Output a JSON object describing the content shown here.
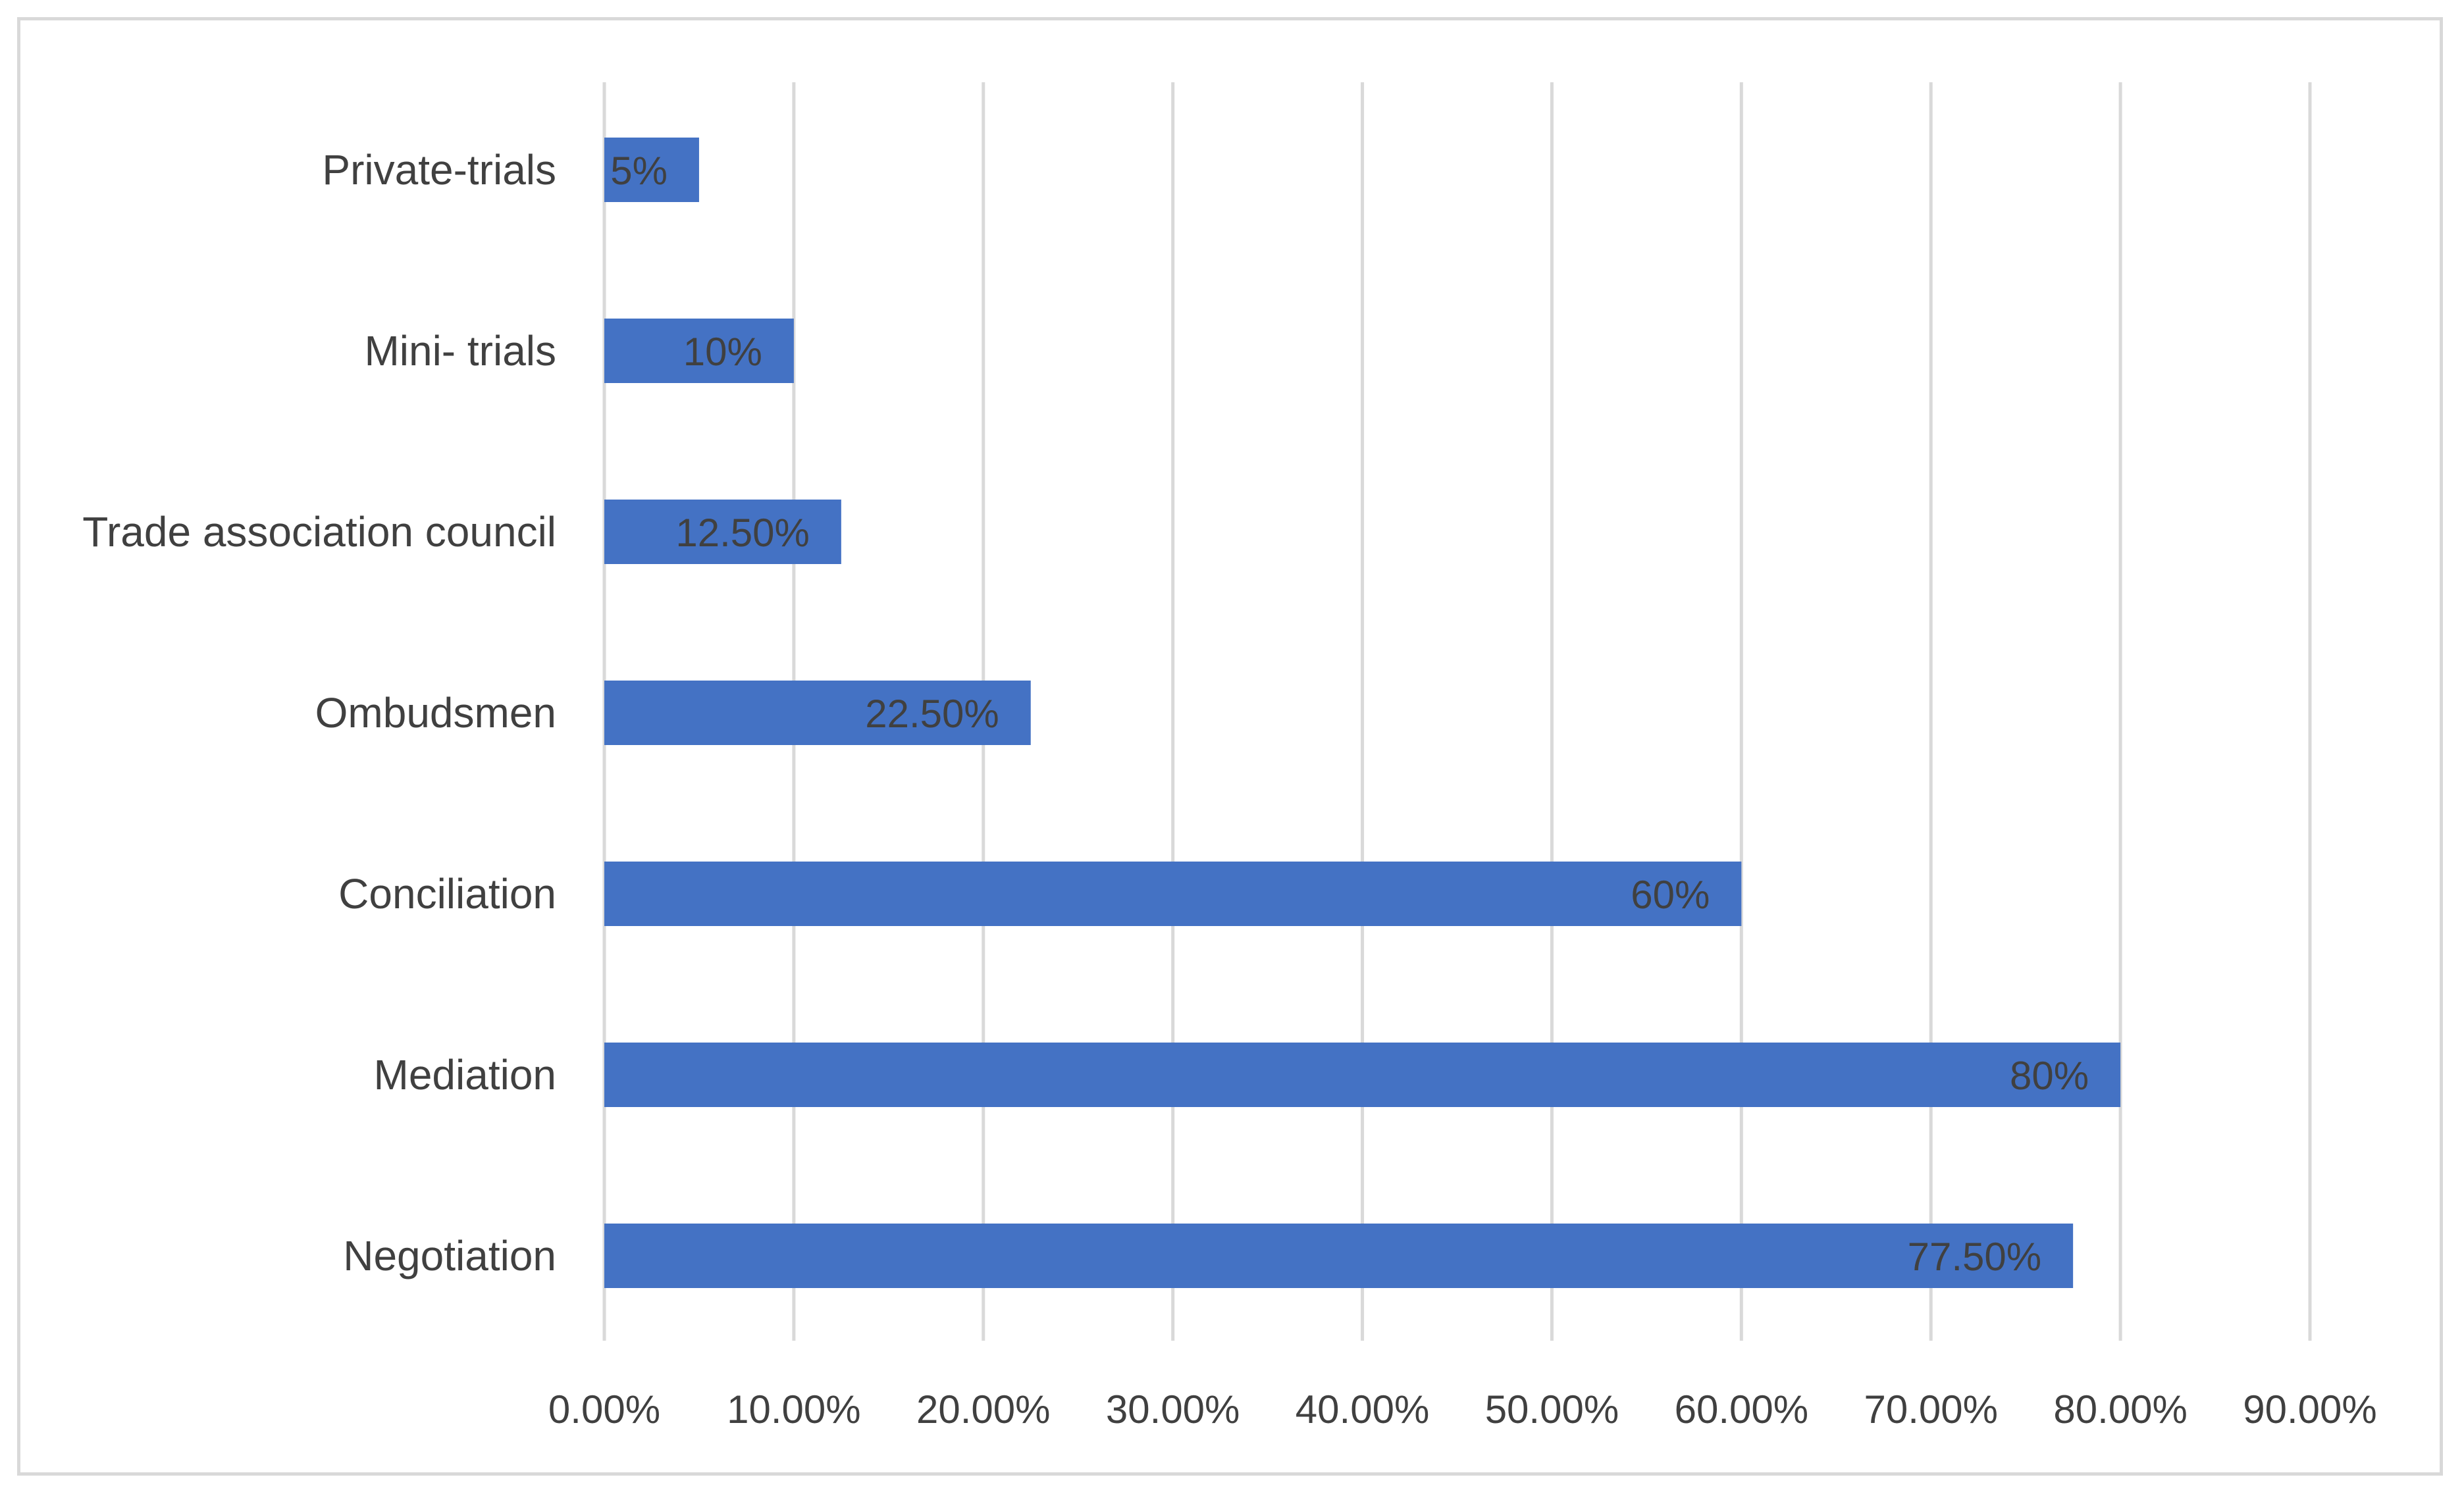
{
  "chart_data": {
    "type": "bar",
    "orientation": "horizontal",
    "title": "",
    "xlabel": "",
    "ylabel": "",
    "categories": [
      "Private-trials",
      "Mini- trials",
      "Trade association council",
      "Ombudsmen",
      "Conciliation",
      "Mediation",
      "Negotiation"
    ],
    "values": [
      5,
      10,
      12.5,
      22.5,
      60,
      80,
      77.5
    ],
    "data_labels": [
      "5%",
      "10%",
      "12.50%",
      "22.50%",
      "60%",
      "80%",
      "77.50%"
    ],
    "xlim": [
      0,
      90
    ],
    "x_ticks": [
      0,
      10,
      20,
      30,
      40,
      50,
      60,
      70,
      80,
      90
    ],
    "x_tick_labels": [
      "0.00%",
      "10.00%",
      "20.00%",
      "30.00%",
      "40.00%",
      "50.00%",
      "60.00%",
      "70.00%",
      "80.00%",
      "90.00%"
    ],
    "grid": "vertical",
    "legend": "none",
    "colors": {
      "bar": "#4472c4",
      "grid": "#d9d9d9",
      "text": "#404040",
      "border": "#d9d9d9"
    }
  }
}
